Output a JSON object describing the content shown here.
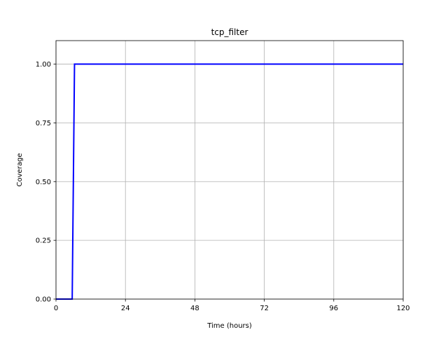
{
  "chart_data": {
    "type": "line",
    "title": "tcp_filter",
    "xlabel": "Time (hours)",
    "ylabel": "Coverage",
    "xlim": [
      0,
      120
    ],
    "ylim": [
      0,
      1.1
    ],
    "xticks": [
      0,
      24,
      48,
      72,
      96,
      120
    ],
    "xtick_labels": [
      "0",
      "24",
      "48",
      "72",
      "96",
      "120"
    ],
    "yticks": [
      0,
      0.25,
      0.5,
      0.75,
      1.0
    ],
    "ytick_labels": [
      "0.00",
      "0.25",
      "0.50",
      "0.75",
      "1.00"
    ],
    "grid": true,
    "series": [
      {
        "color": "#0000ff",
        "x": [
          0,
          5.6,
          6.4,
          120
        ],
        "y": [
          0,
          0,
          1.0,
          1.0
        ]
      }
    ]
  }
}
